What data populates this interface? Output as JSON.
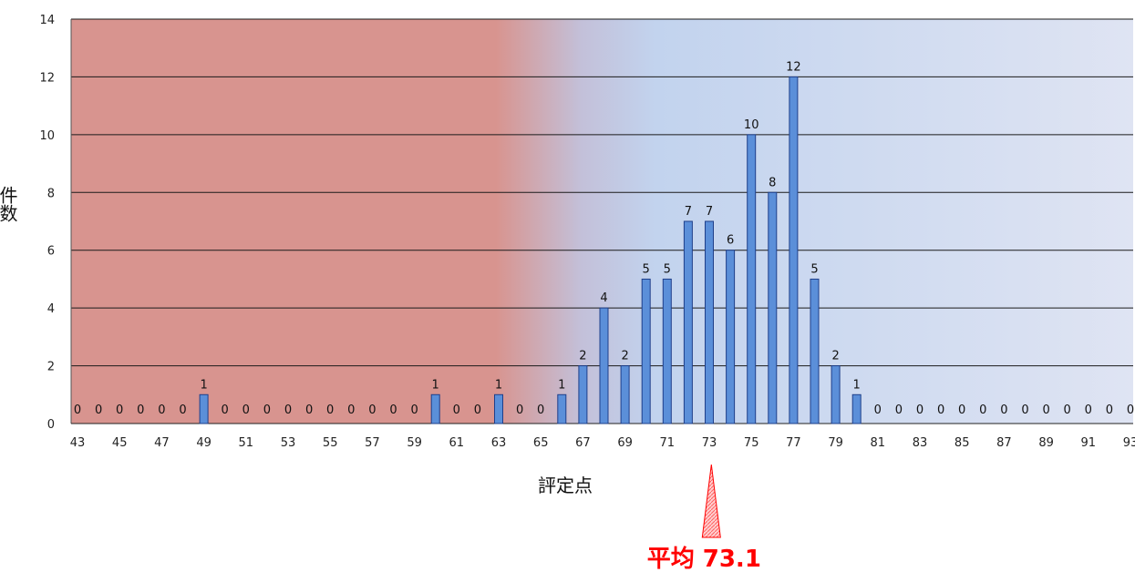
{
  "chart_data": {
    "type": "bar",
    "title": "",
    "xlabel": "評定点",
    "ylabel": "件数",
    "x": [
      43,
      44,
      45,
      46,
      47,
      48,
      49,
      50,
      51,
      52,
      53,
      54,
      55,
      56,
      57,
      58,
      59,
      60,
      61,
      62,
      63,
      64,
      65,
      66,
      67,
      68,
      69,
      70,
      71,
      72,
      73,
      74,
      75,
      76,
      77,
      78,
      79,
      80,
      81,
      82,
      83,
      84,
      85,
      86,
      87,
      88,
      89,
      90,
      91,
      92,
      93
    ],
    "values": [
      0,
      0,
      0,
      0,
      0,
      0,
      1,
      0,
      0,
      0,
      0,
      0,
      0,
      0,
      0,
      0,
      0,
      1,
      0,
      0,
      1,
      0,
      0,
      1,
      2,
      4,
      2,
      5,
      5,
      7,
      7,
      6,
      10,
      8,
      12,
      5,
      2,
      1,
      0,
      0,
      0,
      0,
      0,
      0,
      0,
      0,
      0,
      0,
      0,
      0,
      0
    ],
    "x_tick_labels": [
      "43",
      "45",
      "47",
      "49",
      "51",
      "53",
      "55",
      "57",
      "59",
      "61",
      "63",
      "65",
      "67",
      "69",
      "71",
      "73",
      "75",
      "77",
      "79",
      "81",
      "83",
      "85",
      "87",
      "89",
      "91",
      "93"
    ],
    "y_ticks": [
      0,
      2,
      4,
      6,
      8,
      10,
      12,
      14
    ],
    "ylim": [
      0,
      14
    ],
    "grid": true,
    "legend": "none",
    "mean": {
      "label": "平均 73.1",
      "value": 73.1
    },
    "colors": {
      "bar_fill": "#5b8fd9",
      "bar_stroke": "#1f3f8a",
      "bg_low": "#d8948f",
      "bg_high": "#c2d3ee",
      "bg_end": "#dfe4f3",
      "mean_color": "#ff0000"
    }
  }
}
